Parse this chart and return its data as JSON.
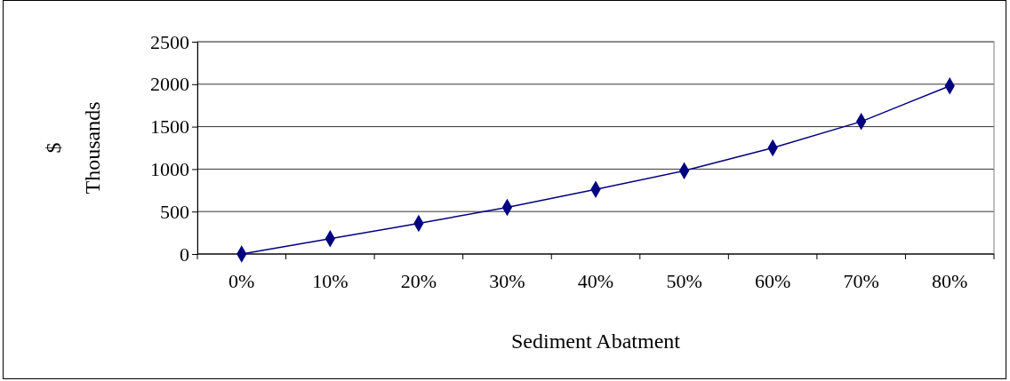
{
  "chart_data": {
    "type": "line",
    "xlabel": "Sediment Abatment",
    "ylabel": "$",
    "annotations": [
      "Thousands"
    ],
    "categories": [
      "0%",
      "10%",
      "20%",
      "30%",
      "40%",
      "50%",
      "60%",
      "70%",
      "80%"
    ],
    "series": [
      {
        "color": "#000080",
        "values": [
          0,
          180,
          360,
          550,
          760,
          980,
          1250,
          1560,
          1980
        ]
      }
    ],
    "ylim": [
      0,
      2500
    ],
    "yticks": [
      0,
      500,
      1000,
      1500,
      2000,
      2500
    ],
    "grid": "y",
    "marker": "diamond"
  }
}
